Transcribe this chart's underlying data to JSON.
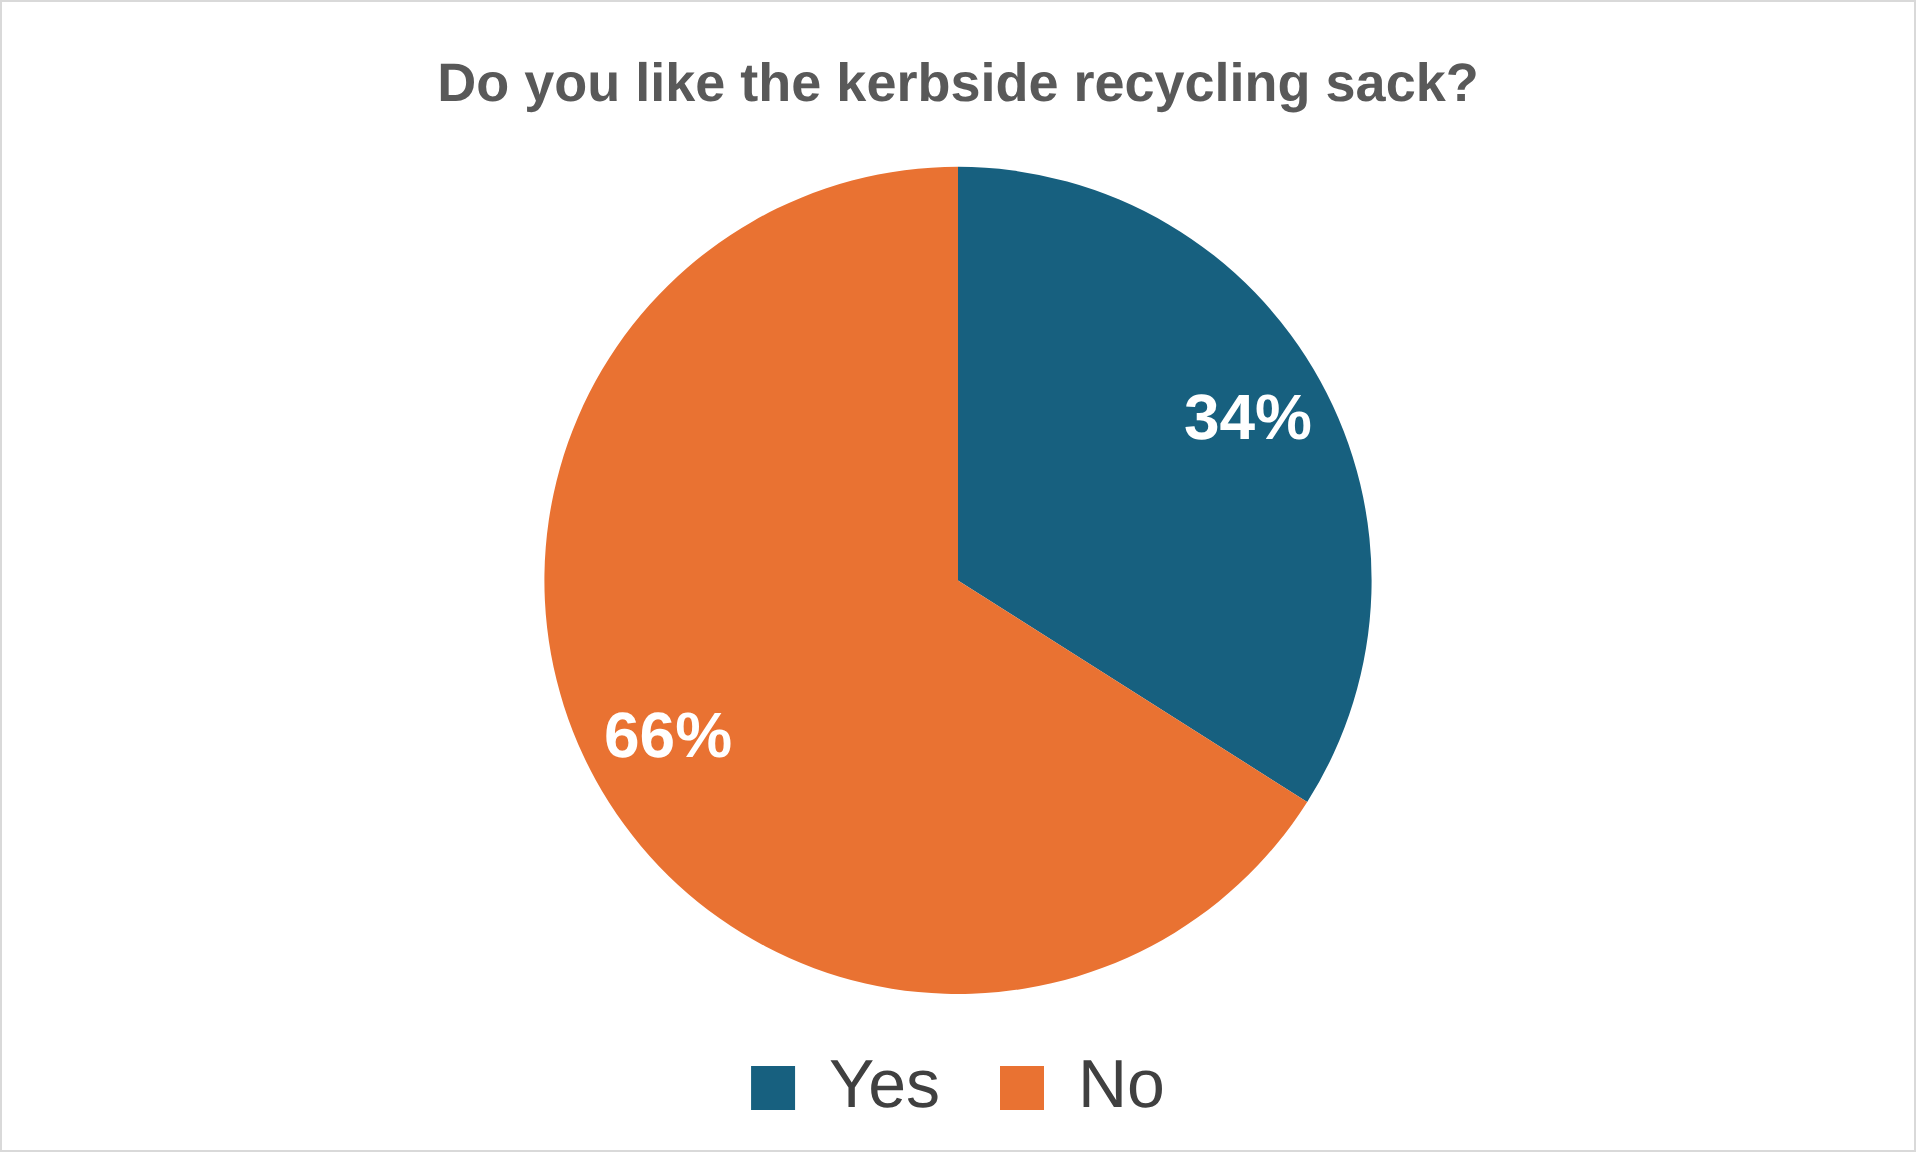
{
  "chart_data": {
    "type": "pie",
    "title": "Do you like the kerbside recycling sack?",
    "categories": [
      "Yes",
      "No"
    ],
    "values": [
      34,
      66
    ],
    "colors": [
      "#17607f",
      "#e97232"
    ],
    "value_labels": [
      "34%",
      "66%"
    ],
    "legend": "bottom"
  }
}
